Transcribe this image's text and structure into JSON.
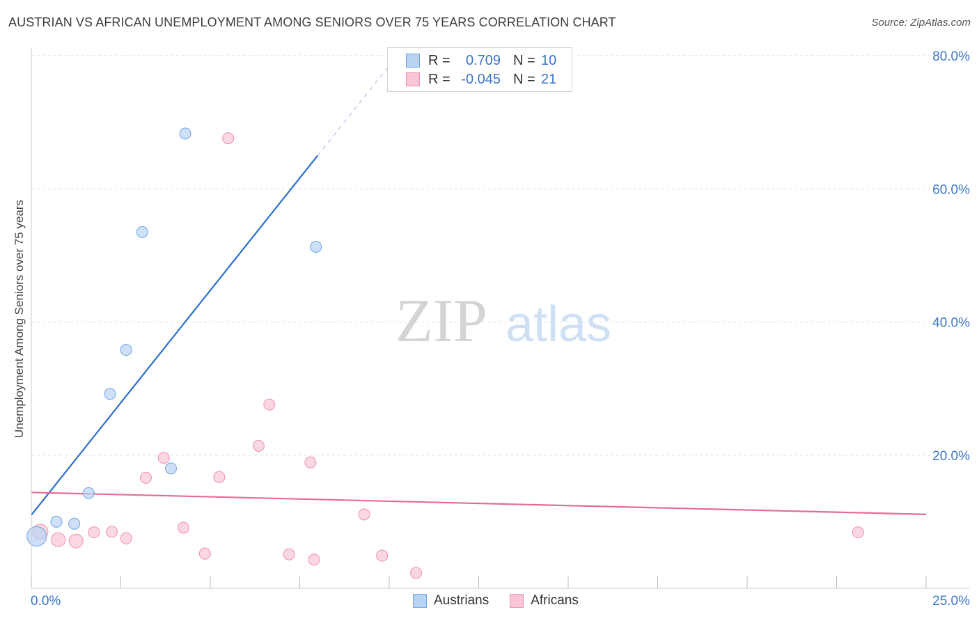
{
  "title": "AUSTRIAN VS AFRICAN UNEMPLOYMENT AMONG SENIORS OVER 75 YEARS CORRELATION CHART",
  "source": "Source: ZipAtlas.com",
  "watermark": {
    "zip": "ZIP",
    "atlas": "atlas"
  },
  "colors": {
    "austrians": "#6fa3e0",
    "austrians_fill": "#b9d3f3",
    "africans": "#f08fb0",
    "africans_fill": "#f9c6d6",
    "trend_blue": "#2a6fcc",
    "trend_pink": "#e56b95",
    "axis_text": "#3a75c4",
    "grid": "#dddddd"
  },
  "legend": {
    "rows": [
      {
        "series": "austrians",
        "r_label": "R =",
        "r_value": "0.709",
        "n_label": "N =",
        "n_value": "10"
      },
      {
        "series": "africans",
        "r_label": "R =",
        "r_value": "-0.045",
        "n_label": "N =",
        "n_value": "21"
      }
    ]
  },
  "chart_data": {
    "type": "scatter",
    "xlabel": "",
    "ylabel": "Unemployment Among Seniors over 75 years",
    "xlim": [
      0,
      25
    ],
    "ylim": [
      0,
      80
    ],
    "x_tick_labels": [
      "0.0%",
      "25.0%"
    ],
    "y_ticks": [
      20,
      40,
      60,
      80
    ],
    "y_tick_labels": [
      "20.0%",
      "40.0%",
      "60.0%",
      "80.0%"
    ],
    "grid": true,
    "series": [
      {
        "name": "Austrians",
        "points": [
          {
            "x": 0.15,
            "y": 7.8,
            "size": 14
          },
          {
            "x": 0.7,
            "y": 10.0,
            "size": 8
          },
          {
            "x": 1.2,
            "y": 9.7,
            "size": 8
          },
          {
            "x": 1.6,
            "y": 14.3,
            "size": 8
          },
          {
            "x": 2.2,
            "y": 29.2,
            "size": 8
          },
          {
            "x": 2.65,
            "y": 35.8,
            "size": 8
          },
          {
            "x": 3.1,
            "y": 53.5,
            "size": 8
          },
          {
            "x": 3.9,
            "y": 18.0,
            "size": 8
          },
          {
            "x": 4.3,
            "y": 68.3,
            "size": 8
          },
          {
            "x": 7.95,
            "y": 51.3,
            "size": 8
          }
        ],
        "trend": {
          "x0": 0.0,
          "y0": 11.0,
          "x1": 8.0,
          "y1": 65.0,
          "x_ext": 10.0,
          "y_ext": 78.5
        }
      },
      {
        "name": "Africans",
        "points": [
          {
            "x": 0.25,
            "y": 8.5,
            "size": 11
          },
          {
            "x": 0.75,
            "y": 7.3,
            "size": 10
          },
          {
            "x": 1.25,
            "y": 7.1,
            "size": 10
          },
          {
            "x": 1.75,
            "y": 8.4,
            "size": 8
          },
          {
            "x": 2.25,
            "y": 8.5,
            "size": 8
          },
          {
            "x": 2.65,
            "y": 7.5,
            "size": 8
          },
          {
            "x": 3.2,
            "y": 16.6,
            "size": 8
          },
          {
            "x": 3.7,
            "y": 19.6,
            "size": 8
          },
          {
            "x": 4.25,
            "y": 9.1,
            "size": 8
          },
          {
            "x": 4.85,
            "y": 5.2,
            "size": 8
          },
          {
            "x": 5.25,
            "y": 16.7,
            "size": 8
          },
          {
            "x": 5.5,
            "y": 67.6,
            "size": 8
          },
          {
            "x": 6.35,
            "y": 21.4,
            "size": 8
          },
          {
            "x": 6.65,
            "y": 27.6,
            "size": 8
          },
          {
            "x": 7.2,
            "y": 5.1,
            "size": 8
          },
          {
            "x": 7.8,
            "y": 18.9,
            "size": 8
          },
          {
            "x": 7.9,
            "y": 4.3,
            "size": 8
          },
          {
            "x": 9.3,
            "y": 11.1,
            "size": 8
          },
          {
            "x": 9.8,
            "y": 4.9,
            "size": 8
          },
          {
            "x": 10.75,
            "y": 2.3,
            "size": 8
          },
          {
            "x": 23.1,
            "y": 8.4,
            "size": 8
          }
        ],
        "trend": {
          "x0": 0.0,
          "y0": 14.4,
          "x1": 25.0,
          "y1": 11.1
        }
      }
    ]
  },
  "bottom_legend": [
    {
      "series": "austrians",
      "label": "Austrians"
    },
    {
      "series": "africans",
      "label": "Africans"
    }
  ]
}
